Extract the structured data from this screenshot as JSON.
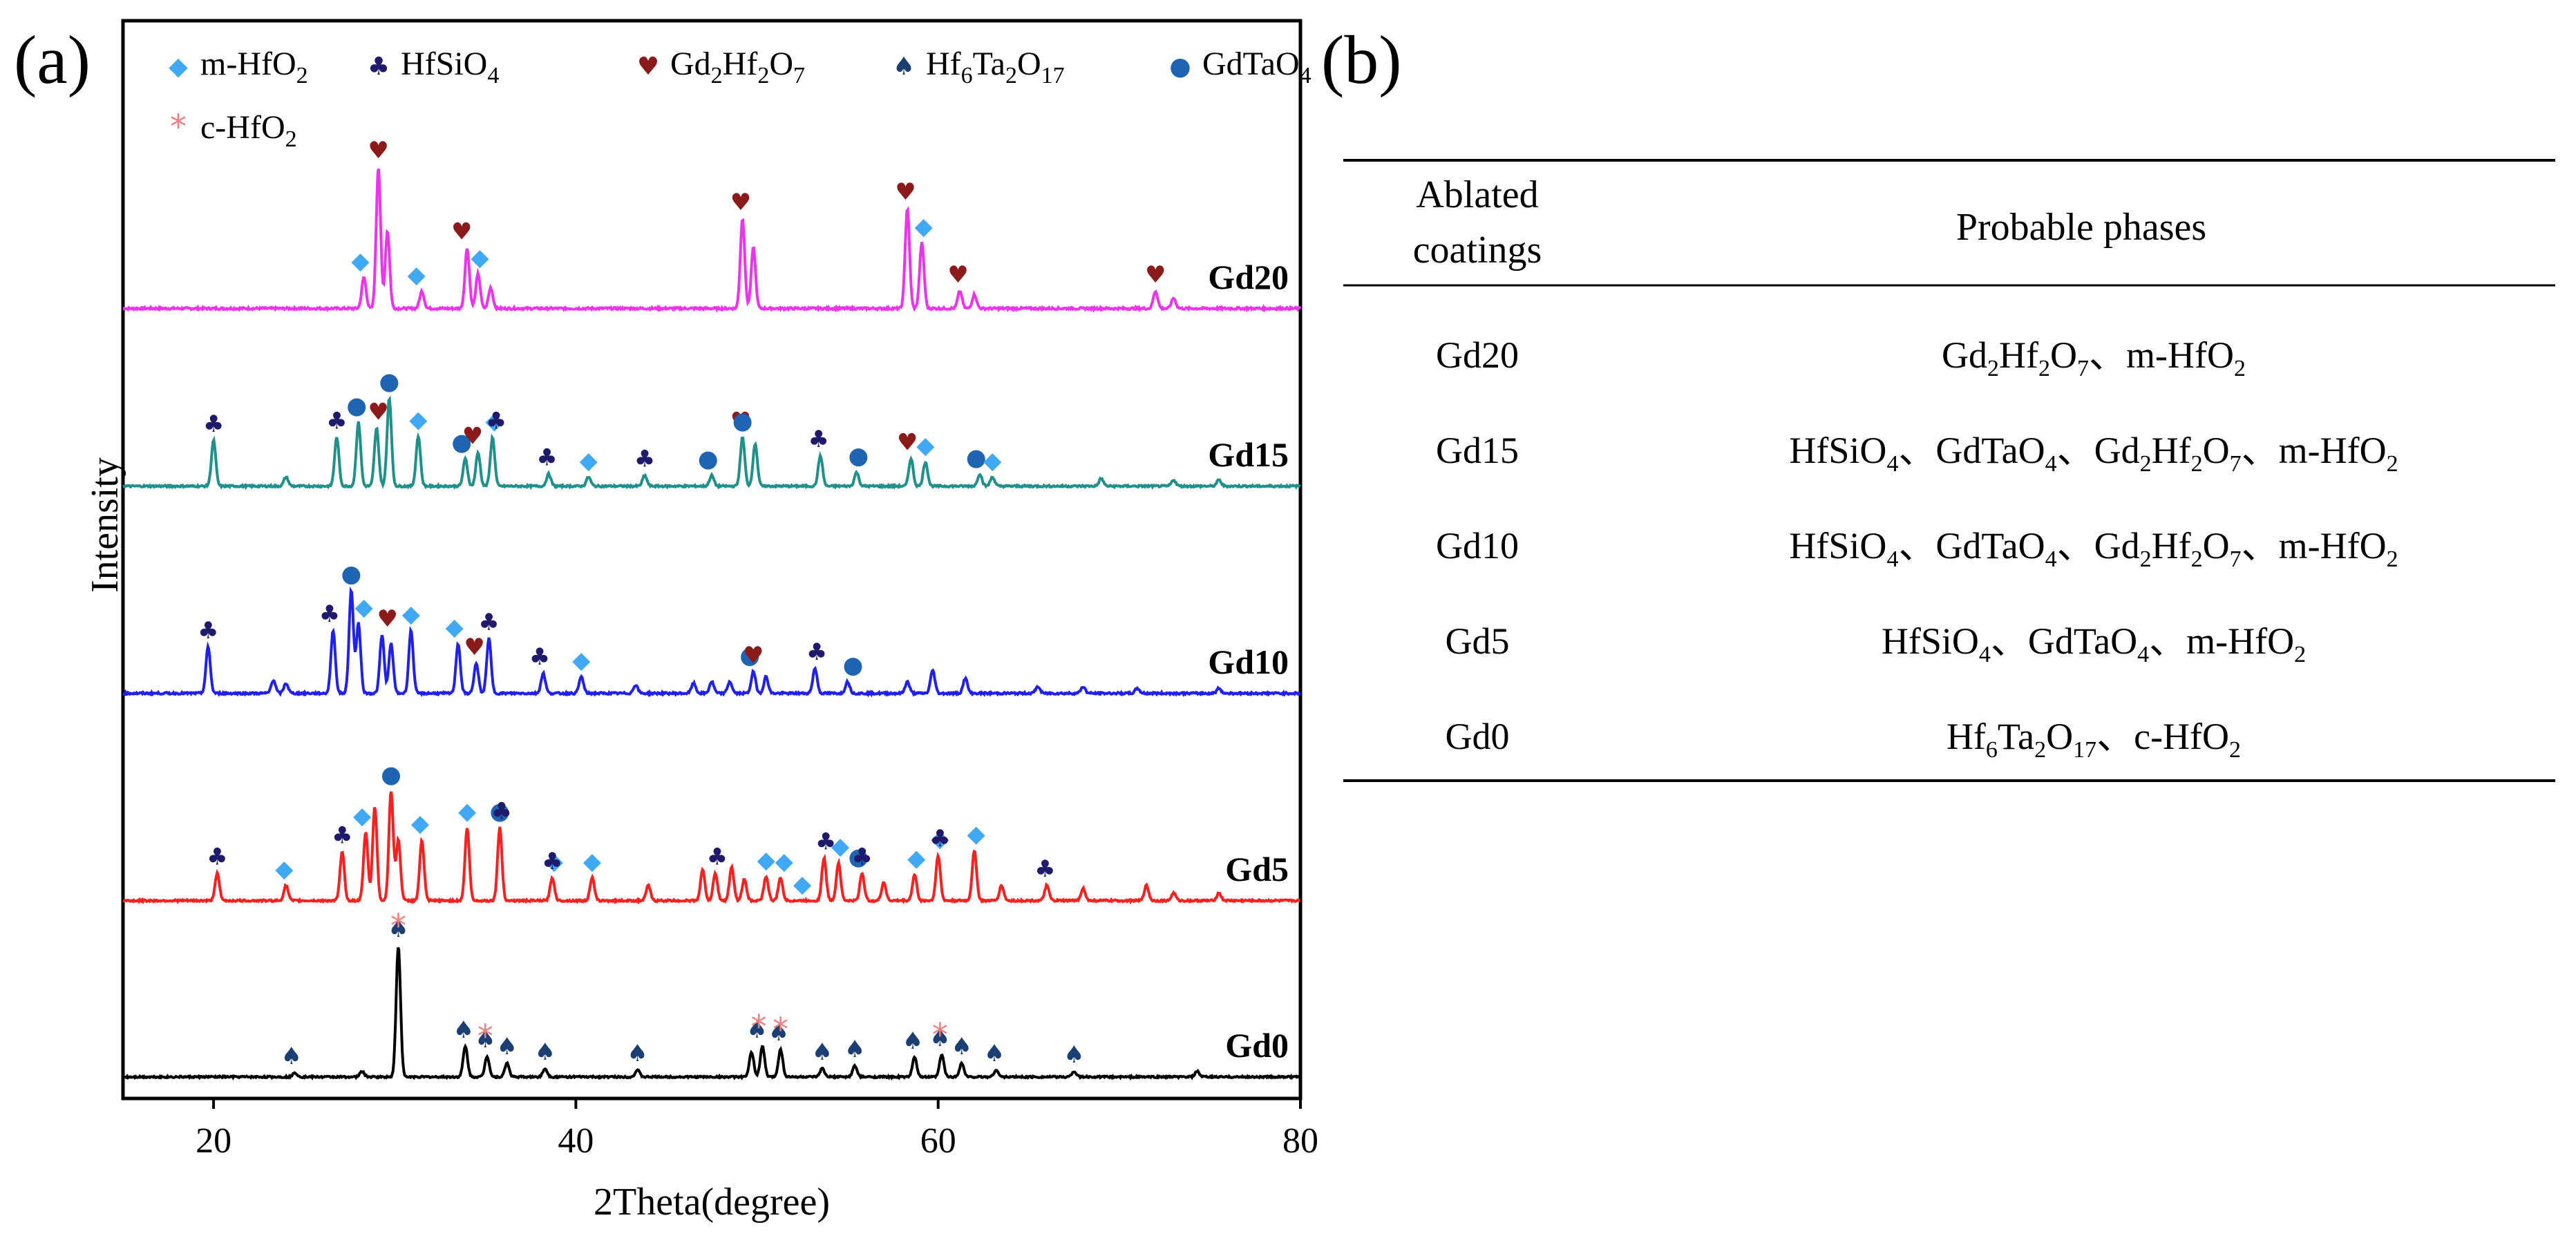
{
  "panels": {
    "a": "(a)",
    "b": "(b)"
  },
  "colors": {
    "m-HfO2": "#3fa9f5",
    "HfSiO4": "#1f1a6b",
    "Gd2Hf2O7": "#8b1a1a",
    "Hf6Ta2O17": "#1b3f73",
    "GdTaO4": "#1f64b0",
    "c-HfO2": "#f08080",
    "Gd20": "#ee33ee",
    "Gd15": "#20908a",
    "Gd10": "#2020f0",
    "Gd5": "#ff2020",
    "Gd0": "#000000"
  },
  "legend": [
    {
      "key": "m-HfO2",
      "icon": "diamond-icon",
      "base": "m-HfO",
      "sub": "2",
      "mid": "",
      "sub2": "",
      "tail": "",
      "sub3": ""
    },
    {
      "key": "HfSiO4",
      "icon": "club-icon",
      "base": "HfSiO",
      "sub": "4",
      "mid": "",
      "sub2": "",
      "tail": "",
      "sub3": ""
    },
    {
      "key": "Gd2Hf2O7",
      "icon": "heart-icon",
      "base": "Gd",
      "sub": "2",
      "mid": "Hf",
      "sub2": "2",
      "tail": "O",
      "sub3": "7"
    },
    {
      "key": "Hf6Ta2O17",
      "icon": "spade-icon",
      "base": "Hf",
      "sub": "6",
      "mid": "Ta",
      "sub2": "2",
      "tail": "O",
      "sub3": "17"
    },
    {
      "key": "GdTaO4",
      "icon": "circle-icon",
      "base": "GdTaO",
      "sub": "4",
      "mid": "",
      "sub2": "",
      "tail": "",
      "sub3": ""
    },
    {
      "key": "c-HfO2",
      "icon": "asterisk-icon",
      "base": "c-HfO",
      "sub": "2",
      "mid": "",
      "sub2": "",
      "tail": "",
      "sub3": ""
    }
  ],
  "chart_data": {
    "type": "line",
    "title": "",
    "xlabel": "2Theta(degree)",
    "ylabel": "Intensity",
    "xlim": [
      15,
      80
    ],
    "xticks": [
      20,
      40,
      60,
      80
    ],
    "y_ticks_shown": false,
    "legend_placement": "top",
    "series": [
      {
        "name": "Gd20",
        "offset": 4,
        "peaks": [
          [
            28.3,
            0.18
          ],
          [
            29.1,
            0.82
          ],
          [
            29.6,
            0.45
          ],
          [
            31.5,
            0.1
          ],
          [
            34.0,
            0.35
          ],
          [
            34.6,
            0.2
          ],
          [
            35.3,
            0.12
          ],
          [
            49.2,
            0.52
          ],
          [
            49.8,
            0.35
          ],
          [
            58.3,
            0.58
          ],
          [
            59.1,
            0.38
          ],
          [
            61.2,
            0.1
          ],
          [
            62.0,
            0.08
          ],
          [
            72.0,
            0.1
          ],
          [
            73.0,
            0.06
          ]
        ],
        "markers": [
          [
            28.1,
            "m-HfO2"
          ],
          [
            29.1,
            "Gd2Hf2O7"
          ],
          [
            31.2,
            "m-HfO2"
          ],
          [
            33.7,
            "Gd2Hf2O7"
          ],
          [
            34.7,
            "m-HfO2"
          ],
          [
            49.1,
            "Gd2Hf2O7"
          ],
          [
            58.2,
            "Gd2Hf2O7"
          ],
          [
            59.2,
            "m-HfO2"
          ],
          [
            61.1,
            "Gd2Hf2O7"
          ],
          [
            72.0,
            "Gd2Hf2O7"
          ]
        ]
      },
      {
        "name": "Gd15",
        "offset": 3,
        "peaks": [
          [
            20.0,
            0.3
          ],
          [
            24.0,
            0.06
          ],
          [
            26.8,
            0.32
          ],
          [
            28.0,
            0.42
          ],
          [
            29.0,
            0.38
          ],
          [
            29.7,
            0.58
          ],
          [
            31.3,
            0.33
          ],
          [
            33.9,
            0.18
          ],
          [
            34.6,
            0.22
          ],
          [
            35.4,
            0.32
          ],
          [
            38.5,
            0.08
          ],
          [
            40.7,
            0.06
          ],
          [
            43.8,
            0.07
          ],
          [
            47.5,
            0.07
          ],
          [
            49.2,
            0.32
          ],
          [
            49.9,
            0.28
          ],
          [
            53.5,
            0.2
          ],
          [
            55.5,
            0.09
          ],
          [
            58.5,
            0.18
          ],
          [
            59.3,
            0.16
          ],
          [
            62.3,
            0.08
          ],
          [
            63.0,
            0.06
          ],
          [
            69.0,
            0.05
          ],
          [
            73.0,
            0.04
          ],
          [
            75.5,
            0.04
          ]
        ],
        "markers": [
          [
            20.0,
            "HfSiO4"
          ],
          [
            26.8,
            "HfSiO4"
          ],
          [
            27.9,
            "GdTaO4"
          ],
          [
            29.1,
            "Gd2Hf2O7"
          ],
          [
            29.7,
            "GdTaO4"
          ],
          [
            31.3,
            "m-HfO2"
          ],
          [
            33.7,
            "GdTaO4"
          ],
          [
            34.3,
            "Gd2Hf2O7"
          ],
          [
            35.5,
            "m-HfO2"
          ],
          [
            35.6,
            "HfSiO4"
          ],
          [
            38.4,
            "HfSiO4"
          ],
          [
            40.7,
            "m-HfO2"
          ],
          [
            43.8,
            "HfSiO4"
          ],
          [
            47.3,
            "GdTaO4"
          ],
          [
            49.1,
            "Gd2Hf2O7"
          ],
          [
            49.2,
            "GdTaO4"
          ],
          [
            53.4,
            "HfSiO4"
          ],
          [
            55.6,
            "GdTaO4"
          ],
          [
            58.3,
            "Gd2Hf2O7"
          ],
          [
            59.3,
            "m-HfO2"
          ],
          [
            62.1,
            "GdTaO4"
          ],
          [
            63.0,
            "m-HfO2"
          ]
        ]
      },
      {
        "name": "Gd10",
        "offset": 2,
        "peaks": [
          [
            19.7,
            0.28
          ],
          [
            23.3,
            0.08
          ],
          [
            24.0,
            0.06
          ],
          [
            26.6,
            0.38
          ],
          [
            27.6,
            0.62
          ],
          [
            28.0,
            0.42
          ],
          [
            29.3,
            0.35
          ],
          [
            29.8,
            0.3
          ],
          [
            30.9,
            0.38
          ],
          [
            33.5,
            0.3
          ],
          [
            34.5,
            0.18
          ],
          [
            35.2,
            0.33
          ],
          [
            38.2,
            0.12
          ],
          [
            40.3,
            0.1
          ],
          [
            43.3,
            0.05
          ],
          [
            46.5,
            0.06
          ],
          [
            47.5,
            0.07
          ],
          [
            48.5,
            0.07
          ],
          [
            49.8,
            0.13
          ],
          [
            50.5,
            0.1
          ],
          [
            53.2,
            0.15
          ],
          [
            55.0,
            0.07
          ],
          [
            58.3,
            0.07
          ],
          [
            59.7,
            0.14
          ],
          [
            61.5,
            0.09
          ],
          [
            65.5,
            0.04
          ],
          [
            68.0,
            0.04
          ],
          [
            71.0,
            0.03
          ],
          [
            75.5,
            0.03
          ]
        ],
        "markers": [
          [
            19.7,
            "HfSiO4"
          ],
          [
            26.4,
            "HfSiO4"
          ],
          [
            27.6,
            "GdTaO4"
          ],
          [
            28.3,
            "m-HfO2"
          ],
          [
            29.6,
            "Gd2Hf2O7"
          ],
          [
            30.9,
            "m-HfO2"
          ],
          [
            33.3,
            "m-HfO2"
          ],
          [
            34.4,
            "Gd2Hf2O7"
          ],
          [
            35.2,
            "HfSiO4"
          ],
          [
            38.0,
            "HfSiO4"
          ],
          [
            40.3,
            "m-HfO2"
          ],
          [
            49.6,
            "GdTaO4"
          ],
          [
            49.8,
            "Gd2Hf2O7"
          ],
          [
            53.3,
            "HfSiO4"
          ],
          [
            55.3,
            "GdTaO4"
          ]
        ]
      },
      {
        "name": "Gd5",
        "offset": 1,
        "peaks": [
          [
            20.2,
            0.18
          ],
          [
            24.0,
            0.1
          ],
          [
            27.1,
            0.32
          ],
          [
            28.4,
            0.45
          ],
          [
            28.9,
            0.62
          ],
          [
            29.8,
            0.72
          ],
          [
            30.2,
            0.4
          ],
          [
            31.5,
            0.4
          ],
          [
            34.0,
            0.48
          ],
          [
            35.8,
            0.48
          ],
          [
            38.7,
            0.15
          ],
          [
            40.9,
            0.15
          ],
          [
            44.0,
            0.1
          ],
          [
            47.0,
            0.2
          ],
          [
            47.7,
            0.18
          ],
          [
            48.6,
            0.22
          ],
          [
            49.3,
            0.14
          ],
          [
            50.5,
            0.16
          ],
          [
            51.3,
            0.15
          ],
          [
            53.7,
            0.28
          ],
          [
            54.5,
            0.25
          ],
          [
            55.8,
            0.18
          ],
          [
            57.0,
            0.12
          ],
          [
            58.7,
            0.17
          ],
          [
            60.0,
            0.3
          ],
          [
            62.0,
            0.33
          ],
          [
            63.5,
            0.1
          ],
          [
            66.0,
            0.1
          ],
          [
            68.0,
            0.08
          ],
          [
            71.5,
            0.1
          ],
          [
            73.0,
            0.05
          ],
          [
            75.5,
            0.05
          ]
        ],
        "markers": [
          [
            20.2,
            "HfSiO4"
          ],
          [
            23.9,
            "m-HfO2"
          ],
          [
            27.1,
            "HfSiO4"
          ],
          [
            28.2,
            "m-HfO2"
          ],
          [
            29.8,
            "GdTaO4"
          ],
          [
            31.4,
            "m-HfO2"
          ],
          [
            34.0,
            "m-HfO2"
          ],
          [
            35.8,
            "GdTaO4"
          ],
          [
            35.9,
            "HfSiO4"
          ],
          [
            38.8,
            "m-HfO2"
          ],
          [
            38.7,
            "HfSiO4"
          ],
          [
            40.9,
            "m-HfO2"
          ],
          [
            47.8,
            "HfSiO4"
          ],
          [
            50.5,
            "m-HfO2"
          ],
          [
            51.5,
            "m-HfO2"
          ],
          [
            52.5,
            "m-HfO2"
          ],
          [
            53.8,
            "HfSiO4"
          ],
          [
            54.6,
            "m-HfO2"
          ],
          [
            55.6,
            "GdTaO4"
          ],
          [
            55.8,
            "HfSiO4"
          ],
          [
            58.8,
            "m-HfO2"
          ],
          [
            60.1,
            "m-HfO2"
          ],
          [
            60.1,
            "HfSiO4"
          ],
          [
            62.1,
            "m-HfO2"
          ],
          [
            65.9,
            "HfSiO4"
          ]
        ]
      },
      {
        "name": "Gd0",
        "offset": 0,
        "peaks": [
          [
            24.5,
            0.03
          ],
          [
            28.2,
            0.04
          ],
          [
            30.2,
            0.95
          ],
          [
            33.9,
            0.22
          ],
          [
            35.1,
            0.15
          ],
          [
            36.2,
            0.1
          ],
          [
            38.3,
            0.06
          ],
          [
            43.4,
            0.05
          ],
          [
            49.7,
            0.18
          ],
          [
            50.3,
            0.22
          ],
          [
            51.3,
            0.2
          ],
          [
            53.6,
            0.06
          ],
          [
            55.4,
            0.08
          ],
          [
            58.7,
            0.14
          ],
          [
            60.2,
            0.16
          ],
          [
            61.3,
            0.1
          ],
          [
            63.2,
            0.05
          ],
          [
            67.5,
            0.04
          ],
          [
            74.3,
            0.04
          ]
        ],
        "markers": [
          [
            24.3,
            "Hf6Ta2O17"
          ],
          [
            30.2,
            "Hf6Ta2O17"
          ],
          [
            30.2,
            "c-HfO2"
          ],
          [
            33.8,
            "Hf6Ta2O17"
          ],
          [
            35.0,
            "Hf6Ta2O17"
          ],
          [
            35.0,
            "c-HfO2"
          ],
          [
            36.2,
            "Hf6Ta2O17"
          ],
          [
            38.3,
            "Hf6Ta2O17"
          ],
          [
            43.4,
            "Hf6Ta2O17"
          ],
          [
            50.0,
            "Hf6Ta2O17"
          ],
          [
            50.1,
            "c-HfO2"
          ],
          [
            51.2,
            "Hf6Ta2O17"
          ],
          [
            51.3,
            "c-HfO2"
          ],
          [
            53.6,
            "Hf6Ta2O17"
          ],
          [
            55.4,
            "Hf6Ta2O17"
          ],
          [
            58.6,
            "Hf6Ta2O17"
          ],
          [
            60.1,
            "Hf6Ta2O17"
          ],
          [
            60.1,
            "c-HfO2"
          ],
          [
            61.3,
            "Hf6Ta2O17"
          ],
          [
            63.1,
            "Hf6Ta2O17"
          ],
          [
            67.5,
            "Hf6Ta2O17"
          ]
        ]
      }
    ]
  },
  "table": {
    "header_col1_line1": "Ablated",
    "header_col1_line2": "coatings",
    "header_col2": "Probable phases",
    "rows": [
      {
        "coating": "Gd20",
        "phases": [
          [
            "Gd",
            "2"
          ],
          [
            "Hf",
            "2"
          ],
          [
            "O",
            "7"
          ],
          [
            "、m-HfO",
            "2"
          ]
        ]
      },
      {
        "coating": "Gd15",
        "phases": [
          [
            "HfSiO",
            "4"
          ],
          [
            "、GdTaO",
            "4"
          ],
          [
            "、Gd",
            "2"
          ],
          [
            "Hf",
            "2"
          ],
          [
            "O",
            "7"
          ],
          [
            "、m-HfO",
            "2"
          ]
        ]
      },
      {
        "coating": "Gd10",
        "phases": [
          [
            "HfSiO",
            "4"
          ],
          [
            "、GdTaO",
            "4"
          ],
          [
            "、Gd",
            "2"
          ],
          [
            "Hf",
            "2"
          ],
          [
            "O",
            "7"
          ],
          [
            "、m-HfO",
            "2"
          ]
        ]
      },
      {
        "coating": "Gd5",
        "phases": [
          [
            "HfSiO",
            "4"
          ],
          [
            "、GdTaO",
            "4"
          ],
          [
            "、m-HfO",
            "2"
          ]
        ]
      },
      {
        "coating": "Gd0",
        "phases": [
          [
            "Hf",
            "6"
          ],
          [
            "Ta",
            "2"
          ],
          [
            "O",
            "17"
          ],
          [
            "、c-HfO",
            "2"
          ]
        ]
      }
    ]
  }
}
